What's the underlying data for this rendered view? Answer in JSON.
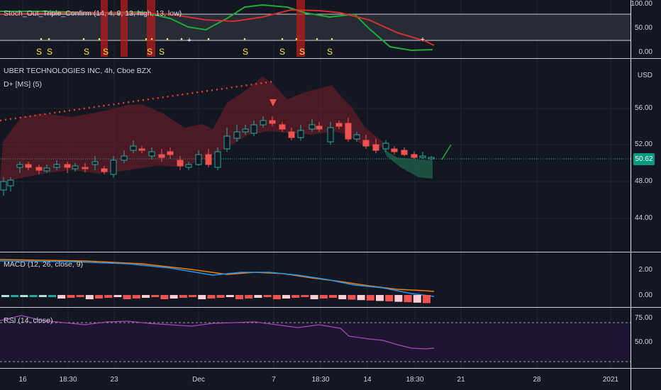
{
  "stoch": {
    "legend": "Stoch_Out_Triple_Confirm (14, 4, 9, 13, high, 13, low)",
    "ticks": [
      "100.00",
      "50.00",
      "0.00"
    ]
  },
  "main": {
    "symbol_line": "UBER TECHNOLOGIES INC, 4h, Cboe BZX",
    "indicator_line": "D+ [MS] (5)",
    "currency": "USD",
    "ticks": [
      "56.00",
      "52.00",
      "48.00",
      "44.00"
    ],
    "last_price": "50.62",
    "colors": {
      "up": "#26a69a",
      "down": "#ef5350",
      "badge": "#089981"
    }
  },
  "macd": {
    "legend": "MACD (12, 26, close, 9)",
    "ticks": [
      "2.00",
      "0.00"
    ]
  },
  "rsi": {
    "legend": "RSI (14, close)",
    "ticks": [
      "75.00",
      "50.00"
    ]
  },
  "xaxis": {
    "labels": [
      "16",
      "18:30",
      "23",
      "Dec",
      "7",
      "18:30",
      "14",
      "18:30",
      "21",
      "28",
      "2021"
    ]
  }
}
